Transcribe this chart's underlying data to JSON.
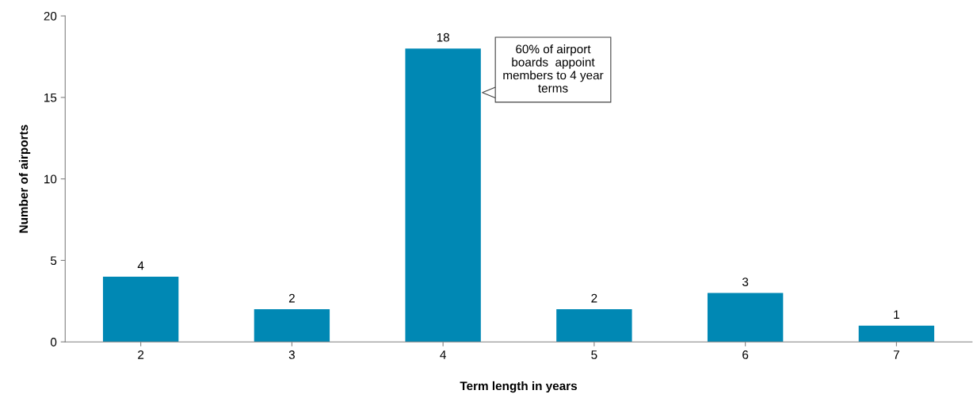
{
  "chart_data": {
    "type": "bar",
    "xlabel": "Term length in years",
    "ylabel": "Number of airports",
    "categories": [
      "2",
      "3",
      "4",
      "5",
      "6",
      "7"
    ],
    "values": [
      4,
      2,
      18,
      2,
      3,
      1
    ],
    "color": "#0088b4",
    "ylim": [
      0,
      20
    ],
    "yticks": [
      0,
      5,
      10,
      15,
      20
    ],
    "grid": false,
    "data_labels": true,
    "annotations": [
      "60% of airport\nboards  appoint\nmembers to 4 year\nterms"
    ]
  }
}
